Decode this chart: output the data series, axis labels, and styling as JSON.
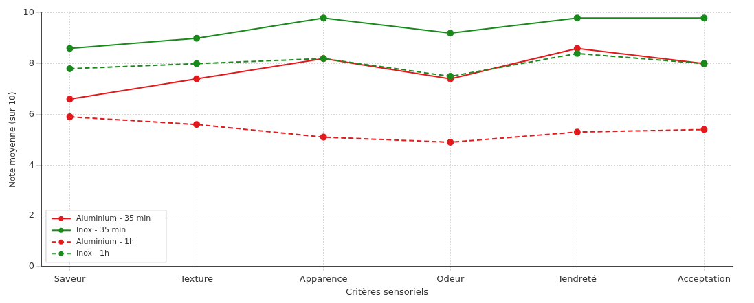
{
  "chart_data": {
    "type": "line",
    "xlabel": "Critères sensoriels",
    "ylabel": "Note moyenne (sur 10)",
    "categories": [
      "Saveur",
      "Texture",
      "Apparence",
      "Odeur",
      "Tendreté",
      "Acceptation"
    ],
    "series": [
      {
        "name": "Aluminium - 35 min",
        "color": "#e3191c",
        "line_style": "solid",
        "values": [
          6.6,
          7.4,
          8.2,
          7.4,
          8.6,
          8.0
        ]
      },
      {
        "name": "Inox - 35 min",
        "color": "#198a1b",
        "line_style": "solid",
        "values": [
          8.6,
          9.0,
          9.8,
          9.2,
          9.8,
          9.8
        ]
      },
      {
        "name": "Aluminium - 1h",
        "color": "#e3191c",
        "line_style": "dashed",
        "values": [
          5.9,
          5.6,
          5.1,
          4.9,
          5.3,
          5.4
        ]
      },
      {
        "name": "Inox - 1h",
        "color": "#198a1b",
        "line_style": "dashed",
        "values": [
          7.8,
          8.0,
          8.2,
          7.5,
          8.4,
          8.0
        ]
      }
    ],
    "ylim": [
      0,
      10
    ],
    "yticks": [
      0,
      2,
      4,
      6,
      8,
      10
    ],
    "grid": true,
    "legend": "bottom left",
    "marker": "circle"
  }
}
